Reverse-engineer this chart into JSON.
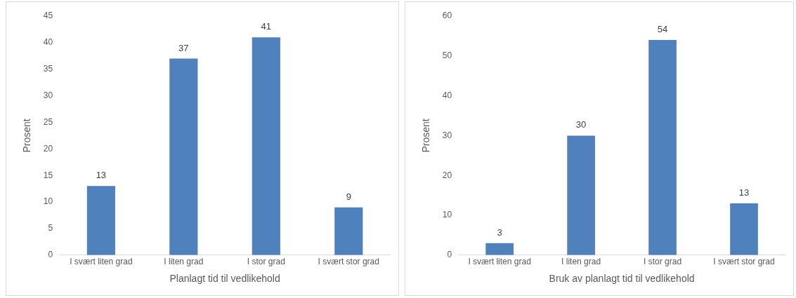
{
  "chart_data": [
    {
      "type": "bar",
      "xlabel": "Planlagt tid til vedlikehold",
      "ylabel": "Prosent",
      "categories": [
        "I svært liten grad",
        "I liten grad",
        "I stor grad",
        "I svært stor grad"
      ],
      "values": [
        13,
        37,
        41,
        9
      ],
      "color": "#4f81bd",
      "ylim": [
        0,
        45
      ],
      "yticks": [
        0,
        5,
        10,
        15,
        20,
        25,
        30,
        35,
        40,
        45
      ],
      "data_labels": true,
      "legend": false,
      "grid": false
    },
    {
      "type": "bar",
      "xlabel": "Bruk av planlagt tid til vedlikehold",
      "ylabel": "Prosent",
      "categories": [
        "I svært liten grad",
        "I liten grad",
        "I stor grad",
        "I svært stor grad"
      ],
      "values": [
        3,
        30,
        54,
        13
      ],
      "color": "#4f81bd",
      "ylim": [
        0,
        60
      ],
      "yticks": [
        0,
        10,
        20,
        30,
        40,
        50,
        60
      ],
      "data_labels": true,
      "legend": false,
      "grid": false
    }
  ]
}
